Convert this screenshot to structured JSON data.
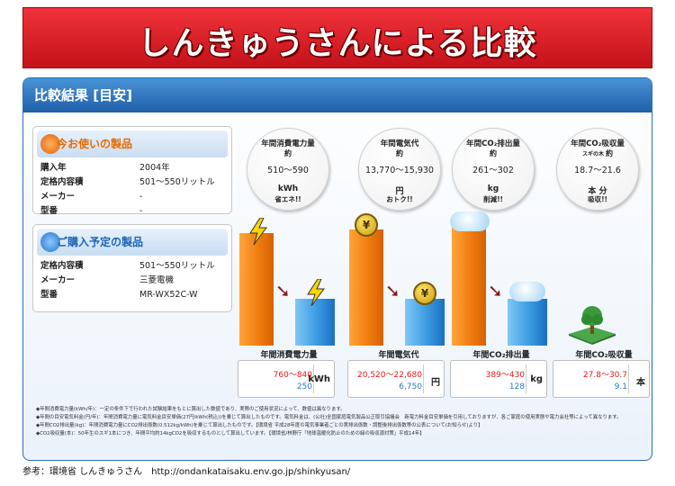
{
  "banner": {
    "title": "しんきゅうさんによる比較"
  },
  "panel": {
    "title": "比較結果 [目安]"
  },
  "current": {
    "heading": "今お使いの製品",
    "rows": [
      {
        "label": "購入年",
        "value": "2004年"
      },
      {
        "label": "定格内容積",
        "value": "501〜550リットル"
      },
      {
        "label": "メーカー",
        "value": "-"
      },
      {
        "label": "型番",
        "value": "-"
      }
    ]
  },
  "planned": {
    "heading": "ご購入予定の製品",
    "rows": [
      {
        "label": "定格内容積",
        "value": "501〜550リットル"
      },
      {
        "label": "メーカー",
        "value": "三菱電機"
      },
      {
        "label": "型番",
        "value": "MR-WX52C-W"
      }
    ]
  },
  "metrics": [
    {
      "circle_title": "年間消費電力量",
      "circle_sub": "約",
      "circle_prefix": "",
      "circle_range": "510〜590",
      "circle_unit": "kWh",
      "circle_note": "省エネ!!",
      "category": "年間消費電力量",
      "before": "760〜840",
      "after": "250",
      "unit": "kWh"
    },
    {
      "circle_title": "年間電気代",
      "circle_sub": "約",
      "circle_prefix": "",
      "circle_range": "13,770〜15,930",
      "circle_unit": "円",
      "circle_note": "おトク!!",
      "category": "年間電気代",
      "before": "20,520〜22,680",
      "after": "6,750",
      "unit": "円"
    },
    {
      "circle_title": "年間CO₂排出量",
      "circle_sub": "約",
      "circle_prefix": "",
      "circle_range": "261〜302",
      "circle_unit": "kg",
      "circle_note": "削減!!",
      "category": "年間CO₂排出量",
      "before": "389〜430",
      "after": "128",
      "unit": "kg"
    },
    {
      "circle_title": "年間CO₂吸収量",
      "circle_sub": "約",
      "circle_prefix": "スギの木",
      "circle_range": "18.7〜21.6",
      "circle_unit": "本 分",
      "circle_note": "吸収!!",
      "category": "年間CO₂吸収量",
      "before": "27.8〜30.7",
      "after": "9.1",
      "unit": "本"
    }
  ],
  "notes": [
    "◆年間消費電力量(kWh/年)：一定の条件下で行われた試験結果をもとに算出した数値であり、実際のご使用状況によって、数値は異なります。",
    "◆年間の目安電気料金(円/年)：年間消費電力量に電気料金目安単価(27円/kWh(税込))を乗じて算出したものです。電気料金は、(公社)全国家庭電気製品公正取引協議会　新電力料金目安単価を引用しておりますが、各ご家庭の使用実態や電力会社等によって異なります。",
    "◆年間CO2排出量(kg)：年間消費電力量にCO2排出係数(0.512kg/kWh)を乗じて算出したものです。【環境省 平成28年度の電気事業者ごとの実排出係数・調整後排出係数等の公表について(お知らせ)より】",
    "◆CO2吸収量(本)：50年生のスギ1本につき、年間平均約14kgCO2を吸収するものとして算出しています。【環境省/林野庁「地球温暖化防止のための緑の吸収源対策」平成14年】"
  ],
  "footer": "参考：環境省 しんきゅうさん　http://ondankataisaku.env.go.jp/shinkyusan/",
  "colors": {
    "banner": "#d81e26",
    "header": "#2a6fb5",
    "bar_before": "#f08a1c",
    "bar_after": "#3c9be2",
    "before_text": "#e61919",
    "after_text": "#2a78c8"
  }
}
